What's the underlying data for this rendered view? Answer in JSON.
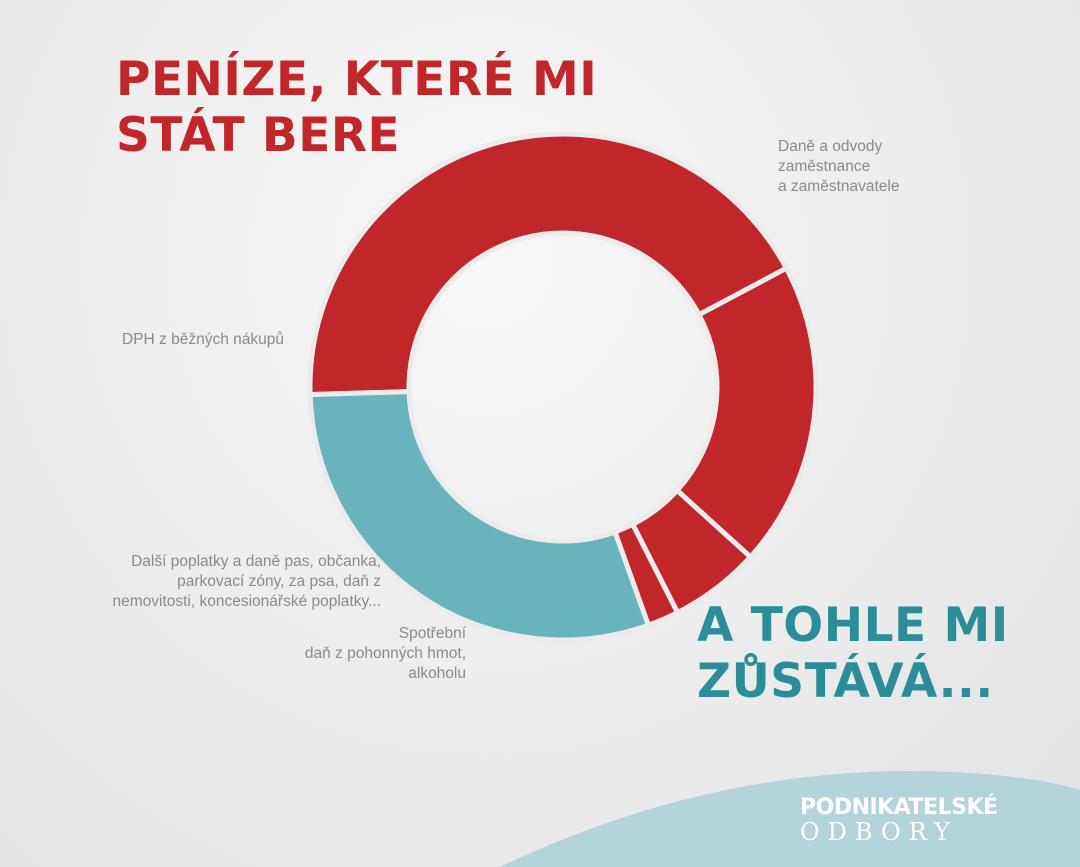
{
  "headline": {
    "red": "PENÍZE, KTERÉ MI STÁT BERE",
    "teal": "A TOHLE MI ZŮSTÁVÁ..."
  },
  "logo": {
    "line1": "PODNIKATELSKÉ",
    "line2": "ODBORY"
  },
  "colors": {
    "red": "#c1262b",
    "teal": "#69b3bd",
    "label": "#8a8a8a",
    "separator": "#ececec",
    "wave": "#a9d0d5"
  },
  "chart_data": {
    "type": "pie",
    "donut": true,
    "title": "",
    "labels": [
      "Daně a odvody\nzaměstnance\na zaměstnavatele",
      "DPH z běžných nákupů",
      "Další poplatky a daně  pas, občanka,\nparkovací zóny, za psa,  daň z\nnemovitosti, koncesionářské poplatky...",
      "Spotřební\ndaň  z pohonných hmot,\nalkoholu",
      ""
    ],
    "values": [
      42.7,
      19.5,
      5.8,
      2.0,
      30.0
    ],
    "slice_colors": [
      "#c1262b",
      "#c1262b",
      "#c1262b",
      "#c1262b",
      "#69b3bd"
    ]
  }
}
